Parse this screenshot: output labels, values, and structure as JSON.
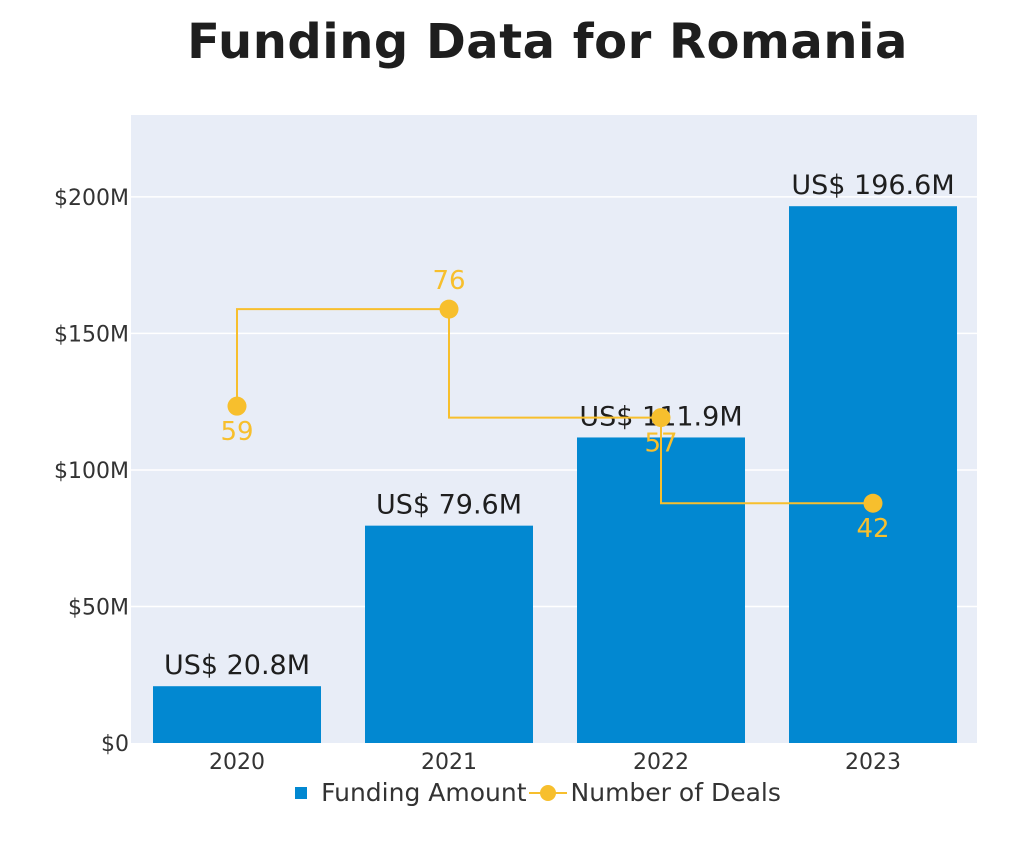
{
  "chart_data": {
    "type": "bar",
    "title": "Funding Data for Romania",
    "categories": [
      "2020",
      "2021",
      "2022",
      "2023"
    ],
    "series": [
      {
        "name": "Funding Amount",
        "type": "bar",
        "unit": "US$ M",
        "values": [
          20.8,
          79.6,
          111.9,
          196.6
        ],
        "labels": [
          "US$ 20.8M",
          "US$ 79.6M",
          "US$ 111.9M",
          "US$ 196.6M"
        ],
        "color": "#0288d1"
      },
      {
        "name": "Number of Deals",
        "type": "step-line",
        "values": [
          59,
          76,
          57,
          42
        ],
        "labels": [
          "59",
          "76",
          "57",
          "42"
        ],
        "color": "#f7bf2d"
      }
    ],
    "y_axis": {
      "min": 0,
      "max": 230,
      "ticks": [
        0,
        50,
        100,
        150,
        200
      ],
      "tick_labels": [
        "$0",
        "$50M",
        "$100M",
        "$150M",
        "$200M"
      ]
    },
    "y_axis_deals": {
      "min": 0,
      "max": 110
    },
    "grid": true,
    "legend_position": "bottom",
    "plot_background": "#e8edf7"
  }
}
